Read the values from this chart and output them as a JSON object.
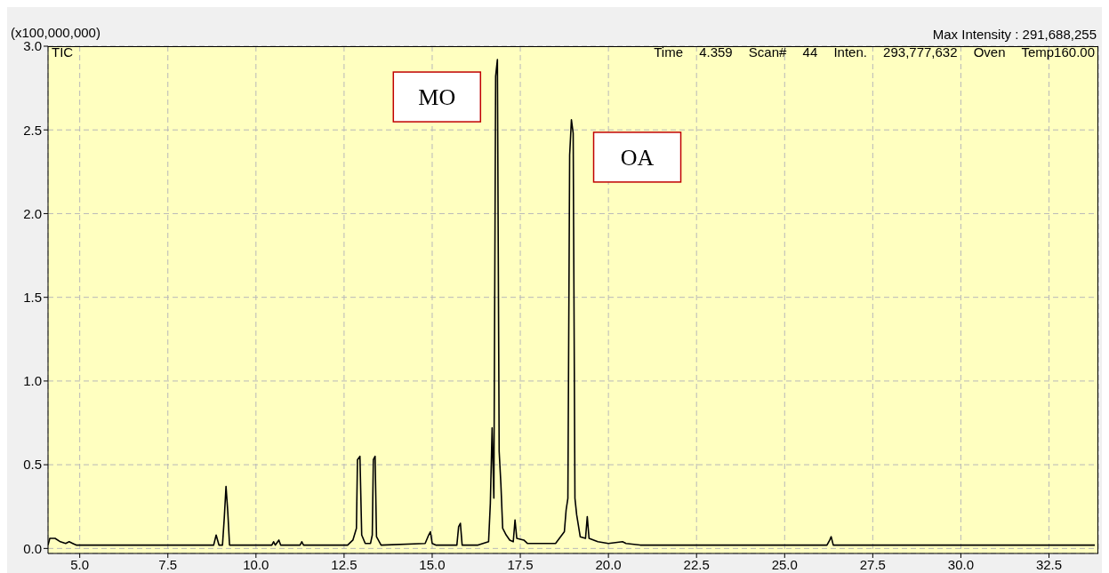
{
  "chart_data": {
    "type": "line",
    "ylabel": "(x100,000,000)",
    "annotations": [
      "Max Intensity : 291,688,255",
      "TIC",
      "Time 4.359 Scan# 44 Inten. 293,777,632 Oven Temp160.00",
      {
        "text": "MO",
        "x": 16.85,
        "y": 2.92
      },
      {
        "text": "OA",
        "x": 18.95,
        "y": 2.56
      }
    ],
    "x": [
      4.1,
      4.15,
      4.3,
      4.45,
      4.6,
      4.7,
      4.8,
      4.9,
      8.8,
      8.87,
      8.95,
      9.05,
      9.1,
      9.15,
      9.2,
      9.25,
      10.45,
      10.5,
      10.55,
      10.65,
      10.7,
      11.25,
      11.3,
      11.35,
      12.6,
      12.75,
      12.85,
      12.88,
      12.95,
      13.0,
      13.1,
      13.25,
      13.3,
      13.33,
      13.38,
      13.42,
      13.55,
      14.8,
      14.9,
      14.95,
      15.0,
      15.1,
      15.7,
      15.75,
      15.8,
      15.85,
      16.3,
      16.6,
      16.65,
      16.7,
      16.75,
      16.8,
      16.85,
      16.9,
      16.95,
      17.0,
      17.1,
      17.2,
      17.3,
      17.35,
      17.4,
      17.6,
      17.7,
      18.0,
      18.5,
      18.75,
      18.8,
      18.85,
      18.9,
      18.95,
      19.0,
      19.05,
      19.1,
      19.2,
      19.35,
      19.4,
      19.45,
      19.7,
      20.0,
      20.4,
      20.5,
      20.9,
      26.2,
      26.28,
      26.32,
      26.38,
      33.8
    ],
    "series": [
      {
        "color": "#000000",
        "values": [
          0.02,
          0.06,
          0.06,
          0.04,
          0.03,
          0.04,
          0.03,
          0.02,
          0.02,
          0.08,
          0.02,
          0.02,
          0.18,
          0.37,
          0.22,
          0.02,
          0.02,
          0.04,
          0.02,
          0.05,
          0.02,
          0.02,
          0.04,
          0.02,
          0.02,
          0.05,
          0.12,
          0.53,
          0.55,
          0.08,
          0.03,
          0.03,
          0.08,
          0.53,
          0.55,
          0.07,
          0.02,
          0.03,
          0.08,
          0.1,
          0.03,
          0.02,
          0.02,
          0.13,
          0.15,
          0.02,
          0.02,
          0.04,
          0.27,
          0.72,
          0.3,
          2.82,
          2.92,
          0.58,
          0.38,
          0.12,
          0.08,
          0.05,
          0.04,
          0.17,
          0.06,
          0.05,
          0.03,
          0.03,
          0.03,
          0.1,
          0.23,
          0.3,
          2.35,
          2.56,
          2.48,
          0.3,
          0.2,
          0.07,
          0.06,
          0.19,
          0.06,
          0.04,
          0.03,
          0.04,
          0.03,
          0.02,
          0.02,
          0.05,
          0.07,
          0.02,
          0.02
        ]
      }
    ],
    "xlim": [
      4.1,
      33.9
    ],
    "ylim": [
      -0.03,
      3.0
    ],
    "xticks": [
      {
        "value": 5,
        "label": "5.0"
      },
      {
        "value": 7.5,
        "label": "7.5"
      },
      {
        "value": 10,
        "label": "10.0"
      },
      {
        "value": 12.5,
        "label": "12.5"
      },
      {
        "value": 15,
        "label": "15.0"
      },
      {
        "value": 17.5,
        "label": "17.5"
      },
      {
        "value": 20,
        "label": "20.0"
      },
      {
        "value": 22.5,
        "label": "22.5"
      },
      {
        "value": 25,
        "label": "25.0"
      },
      {
        "value": 27.5,
        "label": "27.5"
      },
      {
        "value": 30,
        "label": "30.0"
      },
      {
        "value": 32.5,
        "label": "32.5"
      }
    ],
    "yticks": [
      {
        "value": 0,
        "label": "0.0"
      },
      0.5,
      {
        "value": 1,
        "label": "1.0"
      },
      1.5,
      {
        "value": 2,
        "label": "2.0"
      },
      2.5,
      {
        "value": 3,
        "label": "3.0"
      }
    ],
    "grid": true,
    "marker": "none",
    "line_style": "solid",
    "legend": false
  }
}
